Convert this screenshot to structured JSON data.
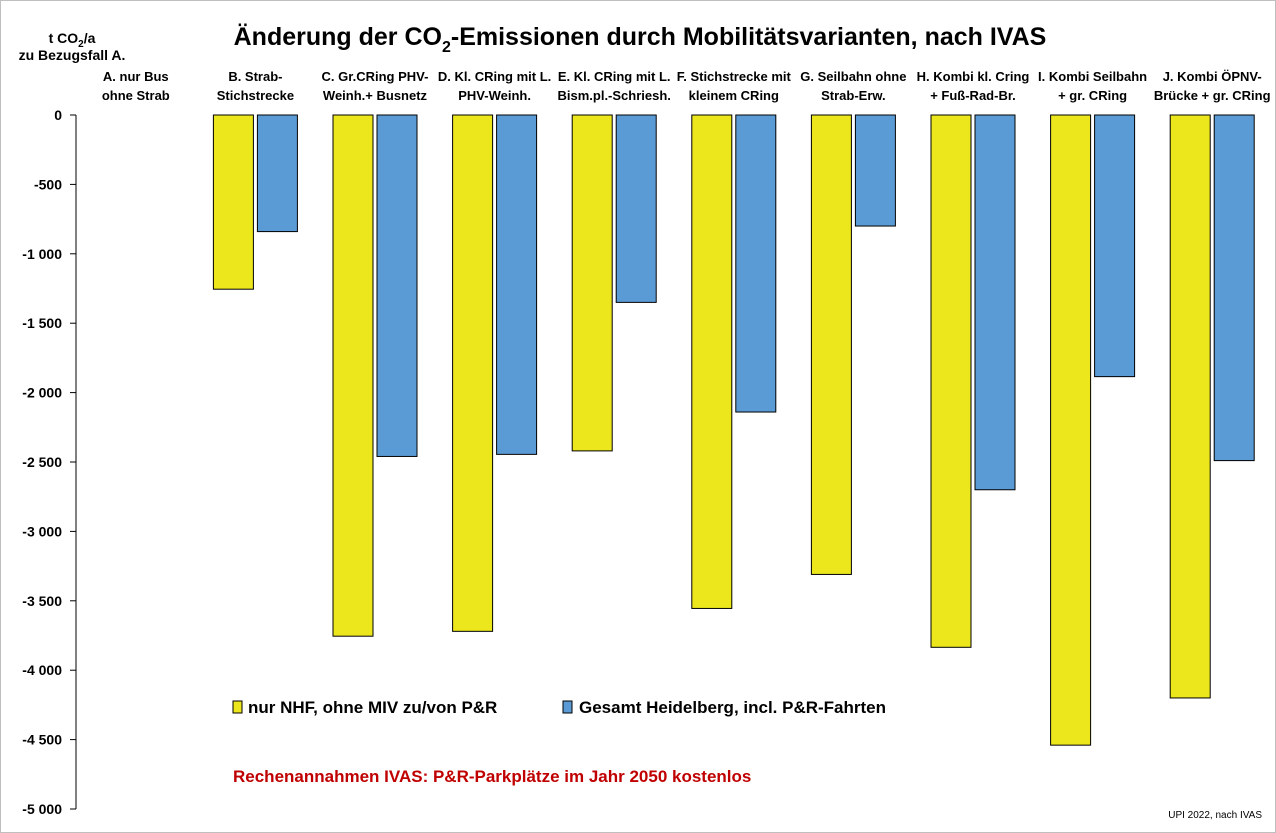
{
  "chart_data": {
    "type": "bar",
    "title": "Änderung der CO₂-Emissionen durch Mobilitätsvarianten, nach IVAS",
    "title_parts": {
      "pre": "Änderung der CO",
      "sub": "2",
      "post": "-Emissionen durch Mobilitätsvarianten, nach IVAS"
    },
    "ylabel_line1": {
      "pre": "t CO",
      "sub": "2",
      "post": "/a"
    },
    "ylabel_line2": "zu Bezugsfall A.",
    "ylim": [
      -5000,
      0
    ],
    "yticks": [
      0,
      -500,
      -1000,
      -1500,
      -2000,
      -2500,
      -3000,
      -3500,
      -4000,
      -4500,
      -5000
    ],
    "ytick_labels": [
      "0",
      "-500",
      "-1 000",
      "-1 500",
      "-2 000",
      "-2 500",
      "-3 000",
      "-3 500",
      "-4 000",
      "-4 500",
      "-5 000"
    ],
    "grid": false,
    "categories": [
      [
        "A. nur Bus",
        "ohne Strab"
      ],
      [
        "B. Strab-",
        "Stichstrecke"
      ],
      [
        "C. Gr.CRing PHV-",
        "Weinh.+ Busnetz"
      ],
      [
        "D. Kl. CRing mit L.",
        "PHV-Weinh."
      ],
      [
        "E. Kl. CRing mit L.",
        "Bism.pl.-Schriesh."
      ],
      [
        "F. Stichstrecke mit",
        "kleinem CRing"
      ],
      [
        "G. Seilbahn ohne",
        "Strab-Erw."
      ],
      [
        "H. Kombi kl. Cring",
        "+ Fuß-Rad-Br."
      ],
      [
        "I. Kombi Seilbahn",
        "+ gr. CRing"
      ],
      [
        "J. Kombi ÖPNV-",
        "Brücke + gr. CRing"
      ]
    ],
    "series": [
      {
        "name": "nur NHF, ohne MIV zu/von P&R",
        "color": "#ebe71c",
        "values": [
          0,
          -1255,
          -3755,
          -3720,
          -2420,
          -3555,
          -3310,
          -3835,
          -4540,
          -4200
        ]
      },
      {
        "name": "Gesamt Heidelberg, incl. P&R-Fahrten",
        "color": "#5b9bd5",
        "values": [
          0,
          -840,
          -2460,
          -2445,
          -1350,
          -2140,
          -800,
          -2700,
          -1885,
          -2490
        ]
      }
    ],
    "legend_position": "lower-center",
    "annotation": "Rechenannahmen IVAS: P&R-Parkplätze im Jahr 2050 kostenlos",
    "source": "UPI 2022, nach IVAS"
  }
}
